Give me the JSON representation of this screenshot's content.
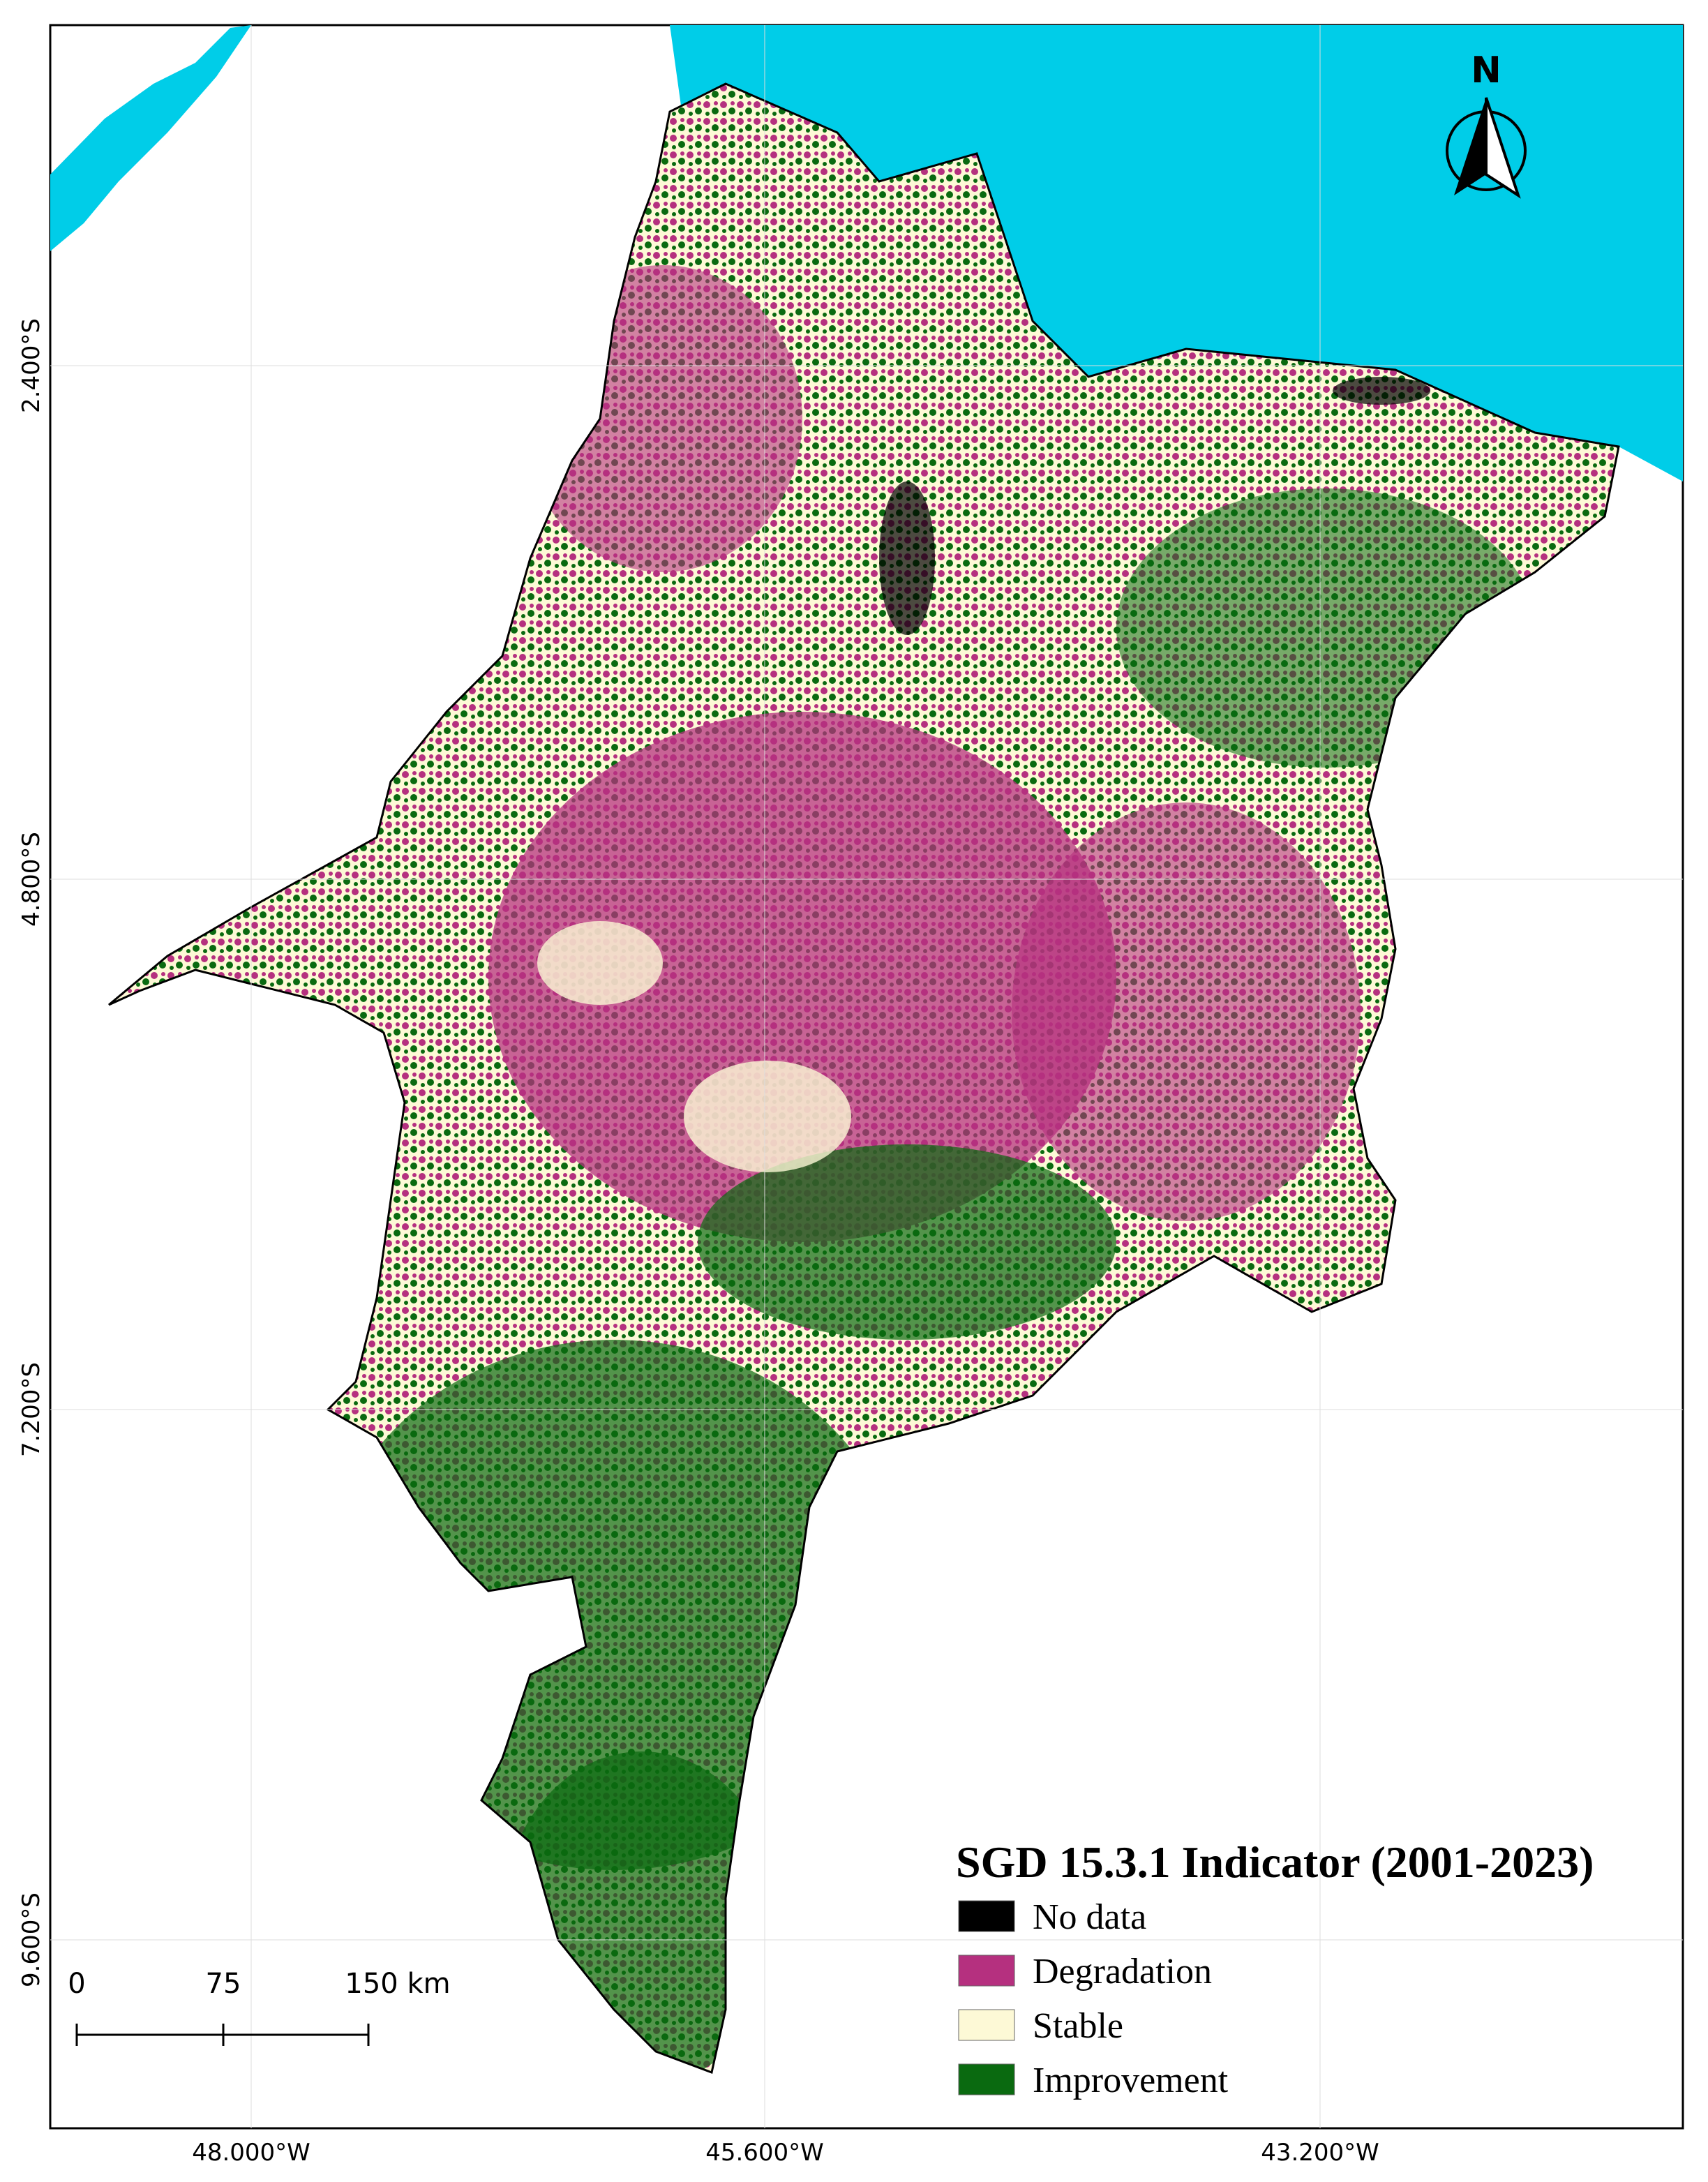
{
  "north_arrow": {
    "label": "N"
  },
  "graticule": {
    "latitudes": [
      "2.400°S",
      "4.800°S",
      "7.200°S",
      "9.600°S"
    ],
    "longitudes": [
      "48.000°W",
      "45.600°W",
      "43.200°W"
    ]
  },
  "legend": {
    "title": "SGD 15.3.1 Indicator (2001-2023)",
    "items": [
      {
        "label": "No data",
        "color": "#000000"
      },
      {
        "label": "Degradation",
        "color": "#b5307f"
      },
      {
        "label": "Stable",
        "color": "#fdf9d6"
      },
      {
        "label": "Improvement",
        "color": "#0a6a10"
      }
    ]
  },
  "scale_bar": {
    "labels": [
      "0",
      "75",
      "150 km"
    ]
  }
}
